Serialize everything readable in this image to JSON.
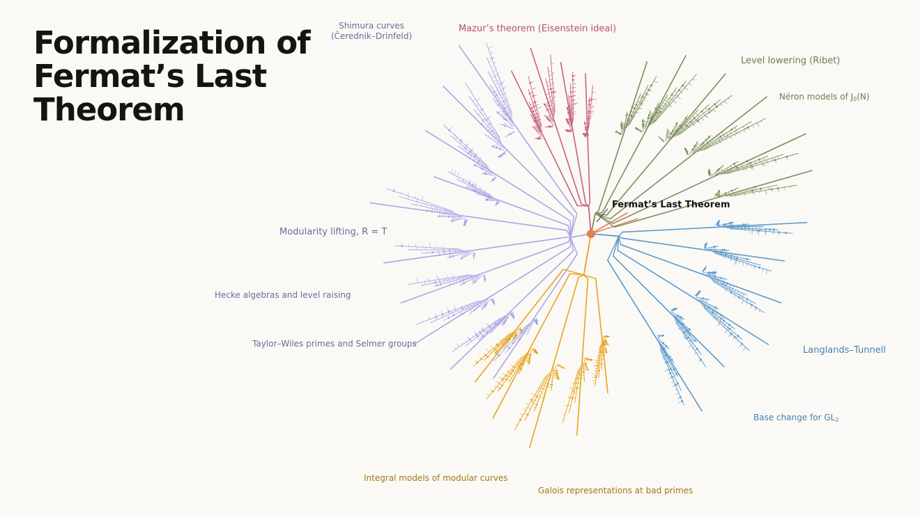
{
  "title_lines": [
    "Formalization of",
    "Fermat’s Last",
    "Theorem"
  ],
  "root_label": "Fermat’s Last Theorem",
  "colors": {
    "background": "#faf9f5",
    "title": "#141413",
    "root": "#e27d55",
    "purple": "#a7a6e6",
    "purple_text": "#6b6a9e",
    "red": "#c8607f",
    "red_text": "#b4506f",
    "green": "#7b8e5c",
    "green_text": "#6a7e4e",
    "blue": "#5b98cc",
    "blue_text": "#4a7fae",
    "gold": "#e8a31b",
    "gold_text": "#a37716"
  },
  "labels": {
    "shimura_1": "Shimura curves",
    "shimura_2": "(Čerednik–Drinfeld)",
    "mazur": "Mazur’s theorem (Eisenstein ideal)",
    "level_lowering": "Level lowering (Ribet)",
    "neron_pre": "Néron models of J",
    "neron_sub": "0",
    "neron_post": "(N)",
    "modularity": "Modularity lifting, R = T",
    "hecke": "Hecke algebras and level raising",
    "taylor_wiles": "Taylor–Wiles primes and Selmer groups",
    "langlands": "Langlands–Tunnell",
    "base_change_pre": "Base change for GL",
    "base_change_sub": "2",
    "integral": "Integral models of modular curves",
    "galois": "Galois representations at bad primes"
  }
}
